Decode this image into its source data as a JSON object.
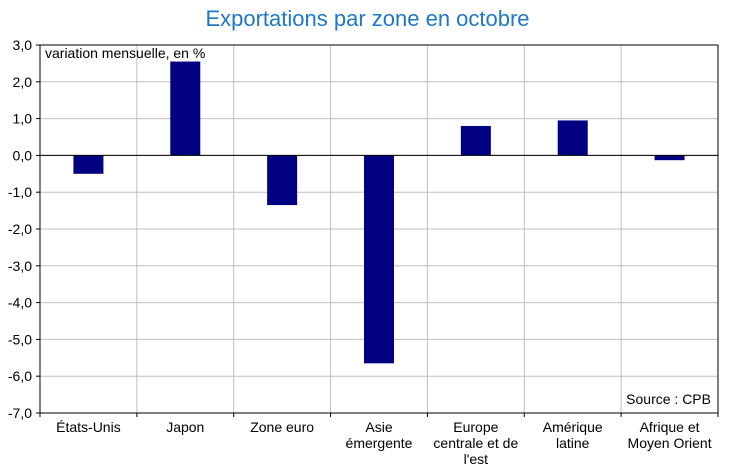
{
  "chart_data": {
    "type": "bar",
    "title": "Exportations par zone en octobre",
    "ylabel": "variation mensuelle, en %",
    "source": "Source : CPB",
    "categories": [
      [
        "États-Unis"
      ],
      [
        "Japon"
      ],
      [
        "Zone euro"
      ],
      [
        "Asie",
        "émergente"
      ],
      [
        "Europe",
        "centrale et de",
        "l'est"
      ],
      [
        "Amérique",
        "latine"
      ],
      [
        "Afrique et",
        "Moyen Orient"
      ]
    ],
    "values": [
      -0.5,
      2.55,
      -1.35,
      -5.65,
      0.8,
      0.95,
      -0.13
    ],
    "ylim": [
      -7,
      3
    ],
    "yticks": [
      3,
      2,
      1,
      0,
      -1,
      -2,
      -3,
      -4,
      -5,
      -6,
      -7
    ],
    "ytick_labels": [
      "3,0",
      "2,0",
      "1,0",
      "0,0",
      "-1,0",
      "-2,0",
      "-3,0",
      "-4,0",
      "-5,0",
      "-6,0",
      "-7,0"
    ],
    "grid": true,
    "bar_color": "#000080",
    "title_color": "#1f77c8"
  }
}
